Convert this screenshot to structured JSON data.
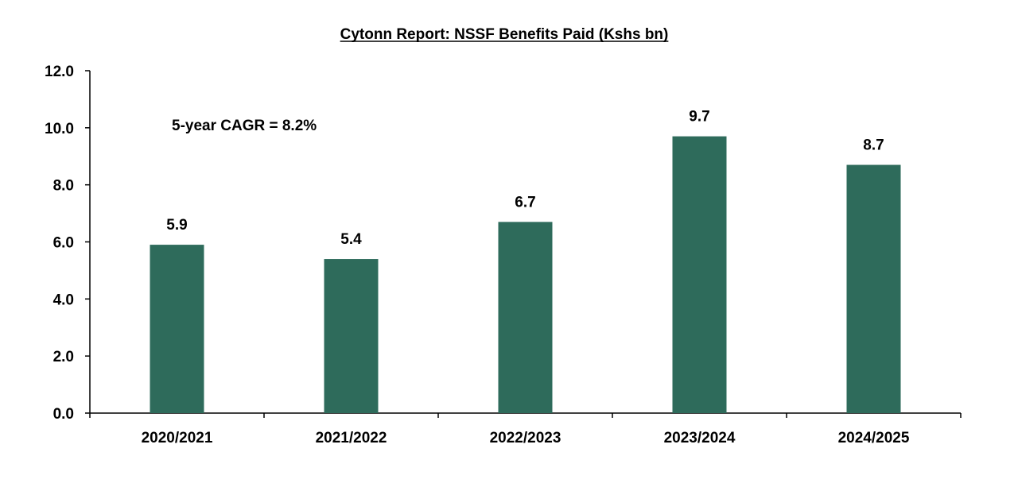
{
  "chart_data": {
    "type": "bar",
    "title": "Cytonn Report: NSSF Benefits Paid (Kshs bn)",
    "categories": [
      "2020/2021",
      "2021/2022",
      "2022/2023",
      "2023/2024",
      "2024/2025"
    ],
    "values": [
      5.9,
      5.4,
      6.7,
      9.7,
      8.7
    ],
    "data_labels": [
      "5.9",
      "5.4",
      "6.7",
      "9.7",
      "8.7"
    ],
    "xlabel": "",
    "ylabel": "",
    "ylim": [
      0,
      12
    ],
    "yticks": [
      0,
      2,
      4,
      6,
      8,
      10,
      12
    ],
    "ytick_labels": [
      "0.0",
      "2.0",
      "4.0",
      "6.0",
      "8.0",
      "10.0",
      "12.0"
    ],
    "grid": false,
    "legend": "none",
    "bar_color": "#2e6b5b",
    "annotation": "5-year CAGR = 8.2%"
  }
}
